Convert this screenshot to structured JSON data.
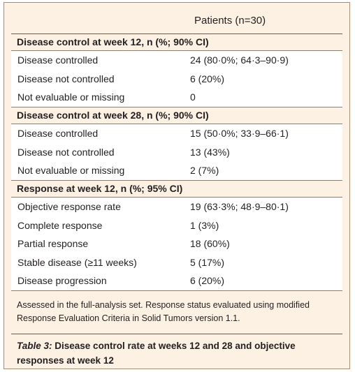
{
  "header": {
    "column_title": "Patients (n=30)"
  },
  "sections": [
    {
      "title": "Disease control at week 12, n (%; 90% CI)",
      "rows": [
        {
          "label": "Disease controlled",
          "value": "24 (80·0%; 64·3–90·9)"
        },
        {
          "label": "Disease not controlled",
          "value": "6 (20%)"
        },
        {
          "label": "Not evaluable or missing",
          "value": "0"
        }
      ]
    },
    {
      "title": "Disease control at week 28, n (%; 90% CI)",
      "rows": [
        {
          "label": "Disease controlled",
          "value": "15 (50·0%; 33·9–66·1)"
        },
        {
          "label": "Disease not controlled",
          "value": "13 (43%)"
        },
        {
          "label": "Not evaluable or missing",
          "value": "2 (7%)"
        }
      ]
    },
    {
      "title": "Response at week 12, n (%; 95% CI)",
      "rows": [
        {
          "label": "Objective response rate",
          "value": "19 (63·3%; 48·9–80·1)"
        },
        {
          "label": "Complete response",
          "value": "1 (3%)"
        },
        {
          "label": "Partial response",
          "value": "18 (60%)"
        },
        {
          "label": "Stable disease (≥11 weeks)",
          "value": "5 (17%)"
        },
        {
          "label": "Disease progression",
          "value": "6 (20%)"
        }
      ]
    }
  ],
  "footnote": "Assessed in the full-analysis set. Response status evaluated using modified Response Evaluation Criteria in Solid Tumors version 1.1.",
  "caption": {
    "table_number": "Table 3:",
    "text": " Disease control rate at weeks 12 and 28 and objective responses at week 12"
  }
}
